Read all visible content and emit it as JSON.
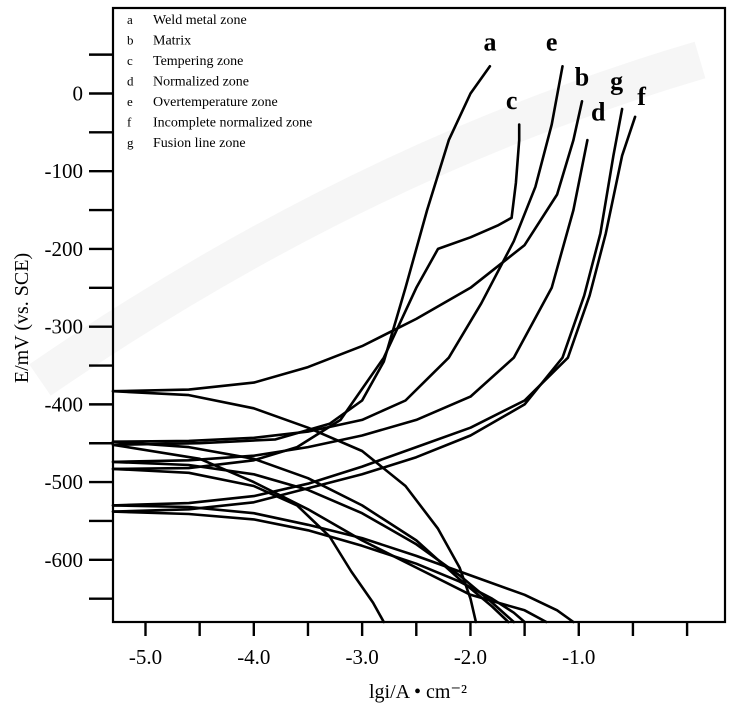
{
  "chart_data": {
    "type": "line",
    "xlabel": "lgi/A • cm⁻²",
    "ylabel": "E/mV (vs. SCE)",
    "xlim": [
      -5.3,
      0.35
    ],
    "ylim": [
      -680,
      110
    ],
    "x_ticks": [
      {
        "value": -5.0,
        "label": "-5.0"
      },
      {
        "value": -4.0,
        "label": "-4.0"
      },
      {
        "value": -3.0,
        "label": "-3.0"
      },
      {
        "value": -2.0,
        "label": "-2.0"
      },
      {
        "value": -1.0,
        "label": "-1.0"
      }
    ],
    "x_minor_ticks": [
      -4.5,
      -3.5,
      -2.5,
      -1.5,
      -0.5,
      0.0
    ],
    "y_ticks": [
      {
        "value": 0,
        "label": "0"
      },
      {
        "value": -100,
        "label": "-100"
      },
      {
        "value": -200,
        "label": "-200"
      },
      {
        "value": -300,
        "label": "-300"
      },
      {
        "value": -400,
        "label": "-400"
      },
      {
        "value": -500,
        "label": "-500"
      },
      {
        "value": -600,
        "label": "-600"
      }
    ],
    "y_minor_ticks": [
      50,
      -50,
      -150,
      -250,
      -350,
      -450,
      -550,
      -650
    ],
    "legend": [
      {
        "key": "a",
        "text": "Weld metal zone"
      },
      {
        "key": "b",
        "text": "Matrix"
      },
      {
        "key": "c",
        "text": "Tempering zone"
      },
      {
        "key": "d",
        "text": "Normalized zone"
      },
      {
        "key": "e",
        "text": "Overtemperature zone"
      },
      {
        "key": "f",
        "text": "Incomplete normalized zone"
      },
      {
        "key": "g",
        "text": "Fusion line zone"
      }
    ],
    "legend_placement": "top-left",
    "series": [
      {
        "name": "a",
        "anodic": [
          [
            -5.3,
            -452
          ],
          [
            -4.5,
            -450
          ],
          [
            -3.8,
            -445
          ],
          [
            -3.3,
            -425
          ],
          [
            -3.0,
            -395
          ],
          [
            -2.8,
            -345
          ],
          [
            -2.6,
            -250
          ],
          [
            -2.4,
            -150
          ],
          [
            -2.2,
            -60
          ],
          [
            -2.0,
            0
          ],
          [
            -1.82,
            35
          ]
        ],
        "cathodic": [
          [
            -5.3,
            -452
          ],
          [
            -4.5,
            -470
          ],
          [
            -4.0,
            -500
          ],
          [
            -3.5,
            -535
          ],
          [
            -3.0,
            -575
          ],
          [
            -2.5,
            -610
          ],
          [
            -2.0,
            -645
          ],
          [
            -1.5,
            -665
          ],
          [
            -1.3,
            -680
          ]
        ],
        "label_at": [
          -1.82,
          55
        ]
      },
      {
        "name": "b",
        "anodic": [
          [
            -5.3,
            -383
          ],
          [
            -4.6,
            -381
          ],
          [
            -4.0,
            -372
          ],
          [
            -3.5,
            -352
          ],
          [
            -3.0,
            -325
          ],
          [
            -2.5,
            -290
          ],
          [
            -2.0,
            -250
          ],
          [
            -1.5,
            -195
          ],
          [
            -1.2,
            -130
          ],
          [
            -1.05,
            -60
          ],
          [
            -0.97,
            -10
          ]
        ],
        "cathodic": [
          [
            -5.3,
            -383
          ],
          [
            -4.6,
            -388
          ],
          [
            -4.0,
            -405
          ],
          [
            -3.5,
            -430
          ],
          [
            -3.0,
            -460
          ],
          [
            -2.6,
            -505
          ],
          [
            -2.3,
            -560
          ],
          [
            -2.1,
            -610
          ],
          [
            -2.0,
            -650
          ],
          [
            -1.95,
            -680
          ]
        ],
        "label_at": [
          -0.97,
          10
        ]
      },
      {
        "name": "c",
        "anodic": [
          [
            -5.3,
            -483
          ],
          [
            -4.6,
            -482
          ],
          [
            -4.0,
            -472
          ],
          [
            -3.6,
            -455
          ],
          [
            -3.2,
            -420
          ],
          [
            -2.8,
            -340
          ],
          [
            -2.5,
            -250
          ],
          [
            -2.3,
            -200
          ],
          [
            -2.0,
            -185
          ],
          [
            -1.75,
            -170
          ],
          [
            -1.62,
            -160
          ],
          [
            -1.58,
            -115
          ],
          [
            -1.55,
            -60
          ],
          [
            -1.55,
            -40
          ]
        ],
        "cathodic": [
          [
            -5.3,
            -483
          ],
          [
            -4.6,
            -488
          ],
          [
            -4.0,
            -505
          ],
          [
            -3.6,
            -530
          ],
          [
            -3.3,
            -570
          ],
          [
            -3.1,
            -615
          ],
          [
            -2.9,
            -655
          ],
          [
            -2.8,
            -680
          ]
        ],
        "label_at": [
          -1.62,
          -20
        ]
      },
      {
        "name": "d",
        "anodic": [
          [
            -5.3,
            -474
          ],
          [
            -4.6,
            -472
          ],
          [
            -4.0,
            -466
          ],
          [
            -3.5,
            -455
          ],
          [
            -3.0,
            -440
          ],
          [
            -2.5,
            -420
          ],
          [
            -2.0,
            -390
          ],
          [
            -1.6,
            -340
          ],
          [
            -1.25,
            -250
          ],
          [
            -1.05,
            -150
          ],
          [
            -0.92,
            -60
          ]
        ],
        "cathodic": [
          [
            -5.3,
            -474
          ],
          [
            -4.6,
            -478
          ],
          [
            -4.0,
            -490
          ],
          [
            -3.5,
            -510
          ],
          [
            -3.0,
            -540
          ],
          [
            -2.5,
            -580
          ],
          [
            -2.1,
            -620
          ],
          [
            -1.8,
            -655
          ],
          [
            -1.6,
            -680
          ]
        ],
        "label_at": [
          -0.82,
          -35
        ]
      },
      {
        "name": "e",
        "anodic": [
          [
            -5.3,
            -448
          ],
          [
            -4.6,
            -447
          ],
          [
            -4.0,
            -443
          ],
          [
            -3.5,
            -435
          ],
          [
            -3.0,
            -420
          ],
          [
            -2.6,
            -395
          ],
          [
            -2.2,
            -340
          ],
          [
            -1.9,
            -270
          ],
          [
            -1.6,
            -190
          ],
          [
            -1.4,
            -120
          ],
          [
            -1.25,
            -40
          ],
          [
            -1.15,
            35
          ]
        ],
        "cathodic": [
          [
            -5.3,
            -448
          ],
          [
            -4.6,
            -455
          ],
          [
            -4.0,
            -470
          ],
          [
            -3.5,
            -495
          ],
          [
            -3.0,
            -530
          ],
          [
            -2.5,
            -575
          ],
          [
            -2.1,
            -625
          ],
          [
            -1.8,
            -660
          ],
          [
            -1.65,
            -680
          ]
        ],
        "label_at": [
          -1.25,
          55
        ]
      },
      {
        "name": "f",
        "anodic": [
          [
            -5.3,
            -530
          ],
          [
            -4.6,
            -527
          ],
          [
            -4.0,
            -518
          ],
          [
            -3.5,
            -502
          ],
          [
            -3.0,
            -480
          ],
          [
            -2.5,
            -455
          ],
          [
            -2.0,
            -430
          ],
          [
            -1.5,
            -395
          ],
          [
            -1.1,
            -340
          ],
          [
            -0.9,
            -260
          ],
          [
            -0.75,
            -180
          ],
          [
            -0.6,
            -80
          ],
          [
            -0.48,
            -30
          ]
        ],
        "cathodic": [
          [
            -5.3,
            -530
          ],
          [
            -4.6,
            -532
          ],
          [
            -4.0,
            -540
          ],
          [
            -3.5,
            -555
          ],
          [
            -3.0,
            -572
          ],
          [
            -2.5,
            -595
          ],
          [
            -2.0,
            -620
          ],
          [
            -1.5,
            -645
          ],
          [
            -1.2,
            -665
          ],
          [
            -1.05,
            -680
          ]
        ],
        "label_at": [
          -0.42,
          -15
        ]
      },
      {
        "name": "g",
        "anodic": [
          [
            -5.3,
            -538
          ],
          [
            -4.6,
            -535
          ],
          [
            -4.0,
            -526
          ],
          [
            -3.5,
            -508
          ],
          [
            -3.0,
            -490
          ],
          [
            -2.5,
            -468
          ],
          [
            -2.0,
            -440
          ],
          [
            -1.5,
            -400
          ],
          [
            -1.15,
            -340
          ],
          [
            -0.95,
            -260
          ],
          [
            -0.8,
            -180
          ],
          [
            -0.68,
            -80
          ],
          [
            -0.6,
            -20
          ]
        ],
        "cathodic": [
          [
            -5.3,
            -538
          ],
          [
            -4.6,
            -541
          ],
          [
            -4.0,
            -548
          ],
          [
            -3.5,
            -562
          ],
          [
            -3.0,
            -582
          ],
          [
            -2.5,
            -605
          ],
          [
            -2.1,
            -628
          ],
          [
            -1.8,
            -650
          ],
          [
            -1.6,
            -668
          ],
          [
            -1.5,
            -680
          ]
        ],
        "label_at": [
          -0.65,
          5
        ]
      }
    ]
  }
}
